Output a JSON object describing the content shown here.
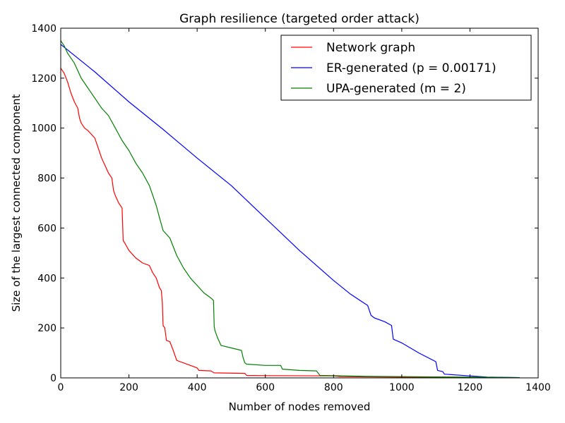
{
  "chart_data": {
    "type": "line",
    "title": "Graph resilience (targeted order attack)",
    "xlabel": "Number of nodes removed",
    "ylabel": "Size of the largest connected component",
    "xlim": [
      0,
      1400
    ],
    "ylim": [
      0,
      1400
    ],
    "xticks": [
      0,
      200,
      400,
      600,
      800,
      1000,
      1200,
      1400
    ],
    "yticks": [
      0,
      200,
      400,
      600,
      800,
      1000,
      1200,
      1400
    ],
    "legend_position": "top-right",
    "grid": false,
    "series": [
      {
        "name": "Network graph",
        "color": "#ff0000",
        "x": [
          0,
          10,
          20,
          30,
          40,
          50,
          55,
          60,
          70,
          80,
          100,
          110,
          120,
          130,
          140,
          150,
          155,
          160,
          170,
          180,
          183,
          190,
          200,
          220,
          240,
          260,
          270,
          280,
          290,
          295,
          298,
          300,
          305,
          310,
          320,
          330,
          340,
          350,
          360,
          380,
          400,
          405,
          440,
          450,
          540,
          545,
          600,
          800,
          820,
          1000,
          1200,
          1346
        ],
        "y": [
          1240,
          1220,
          1185,
          1140,
          1105,
          1080,
          1040,
          1020,
          1000,
          990,
          960,
          920,
          880,
          850,
          820,
          800,
          750,
          730,
          700,
          680,
          550,
          535,
          510,
          480,
          460,
          450,
          420,
          400,
          360,
          350,
          300,
          210,
          200,
          150,
          145,
          110,
          70,
          65,
          60,
          50,
          40,
          30,
          28,
          20,
          18,
          10,
          9,
          8,
          5,
          3,
          2,
          1
        ]
      },
      {
        "name": "ER-generated (p = 0.00171)",
        "color": "#0000ff",
        "x": [
          0,
          100,
          200,
          300,
          400,
          500,
          600,
          700,
          800,
          850,
          900,
          910,
          920,
          950,
          970,
          975,
          1000,
          1050,
          1100,
          1105,
          1120,
          1125,
          1200,
          1250,
          1346
        ],
        "y": [
          1335,
          1225,
          1105,
          995,
          880,
          770,
          640,
          510,
          390,
          335,
          290,
          250,
          240,
          225,
          210,
          155,
          140,
          100,
          65,
          30,
          25,
          15,
          8,
          3,
          1
        ]
      },
      {
        "name": "UPA-generated (m = 2)",
        "color": "#008000",
        "x": [
          0,
          10,
          20,
          40,
          60,
          80,
          100,
          120,
          140,
          160,
          180,
          200,
          220,
          240,
          260,
          270,
          280,
          290,
          300,
          320,
          340,
          360,
          380,
          400,
          420,
          440,
          448,
          450,
          452,
          460,
          470,
          500,
          530,
          535,
          540,
          545,
          600,
          645,
          650,
          700,
          750,
          760,
          800,
          900,
          1000,
          1100,
          1200,
          1346
        ],
        "y": [
          1350,
          1330,
          1300,
          1260,
          1200,
          1160,
          1120,
          1080,
          1050,
          1000,
          950,
          910,
          860,
          820,
          770,
          730,
          690,
          640,
          590,
          560,
          490,
          440,
          400,
          370,
          340,
          320,
          310,
          205,
          190,
          160,
          130,
          120,
          110,
          80,
          60,
          55,
          50,
          50,
          35,
          30,
          28,
          10,
          9,
          6,
          5,
          4,
          3,
          1
        ]
      }
    ]
  }
}
